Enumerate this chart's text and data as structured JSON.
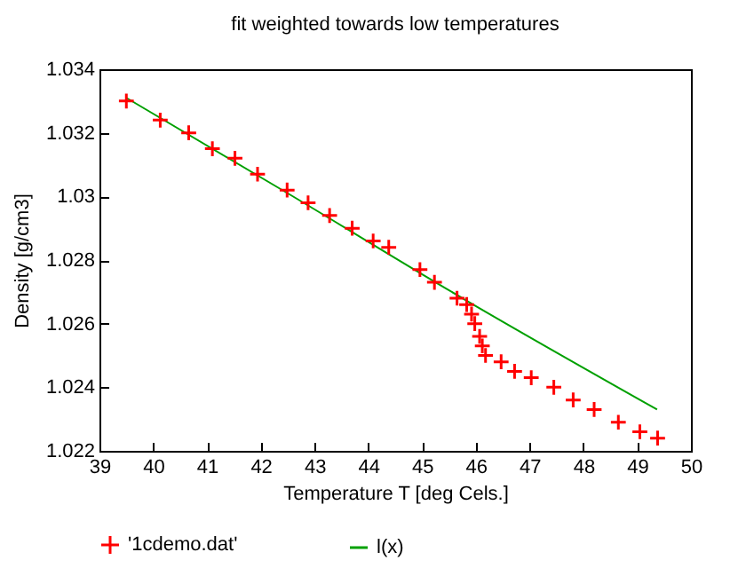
{
  "chart_data": {
    "type": "scatter",
    "title": "fit weighted towards low temperatures",
    "xlabel": "Temperature T   [deg Cels.]",
    "ylabel": "Density [g/cm3]",
    "xlim": [
      39,
      50
    ],
    "xticks": [
      39,
      40,
      41,
      42,
      43,
      44,
      45,
      46,
      47,
      48,
      49,
      50
    ],
    "ylim": [
      1.022,
      1.034
    ],
    "yticks": [
      1.022,
      1.024,
      1.026,
      1.028,
      1.03,
      1.032,
      1.034
    ],
    "grid": false,
    "legend": "bottom",
    "series": [
      {
        "name": "'1cdemo.dat'",
        "marker": "cross",
        "color": "#ff0000",
        "x": [
          39.5,
          40.13,
          40.66,
          41.1,
          41.52,
          41.94,
          42.49,
          42.88,
          43.28,
          43.7,
          44.09,
          44.38,
          44.96,
          45.23,
          45.65,
          45.83,
          45.92,
          45.98,
          46.07,
          46.12,
          46.18,
          46.47,
          46.72,
          47.03,
          47.45,
          47.81,
          48.2,
          48.65,
          49.05,
          49.38
        ],
        "values": [
          1.033,
          1.0324,
          1.032,
          1.0315,
          1.0312,
          1.0307,
          1.0302,
          1.0298,
          1.0294,
          1.029,
          1.0286,
          1.0284,
          1.0277,
          1.0273,
          1.0268,
          1.0266,
          1.0263,
          1.026,
          1.0256,
          1.0253,
          1.025,
          1.0248,
          1.0245,
          1.0243,
          1.024,
          1.0236,
          1.0233,
          1.0229,
          1.0226,
          1.0224
        ]
      },
      {
        "name": "l(x)",
        "type": "line",
        "marker": "none",
        "color": "#00a000",
        "x": [
          39.5,
          42.5,
          45.85,
          49.37
        ],
        "values": [
          1.0331,
          1.0301,
          1.0267,
          1.0233
        ]
      }
    ]
  }
}
